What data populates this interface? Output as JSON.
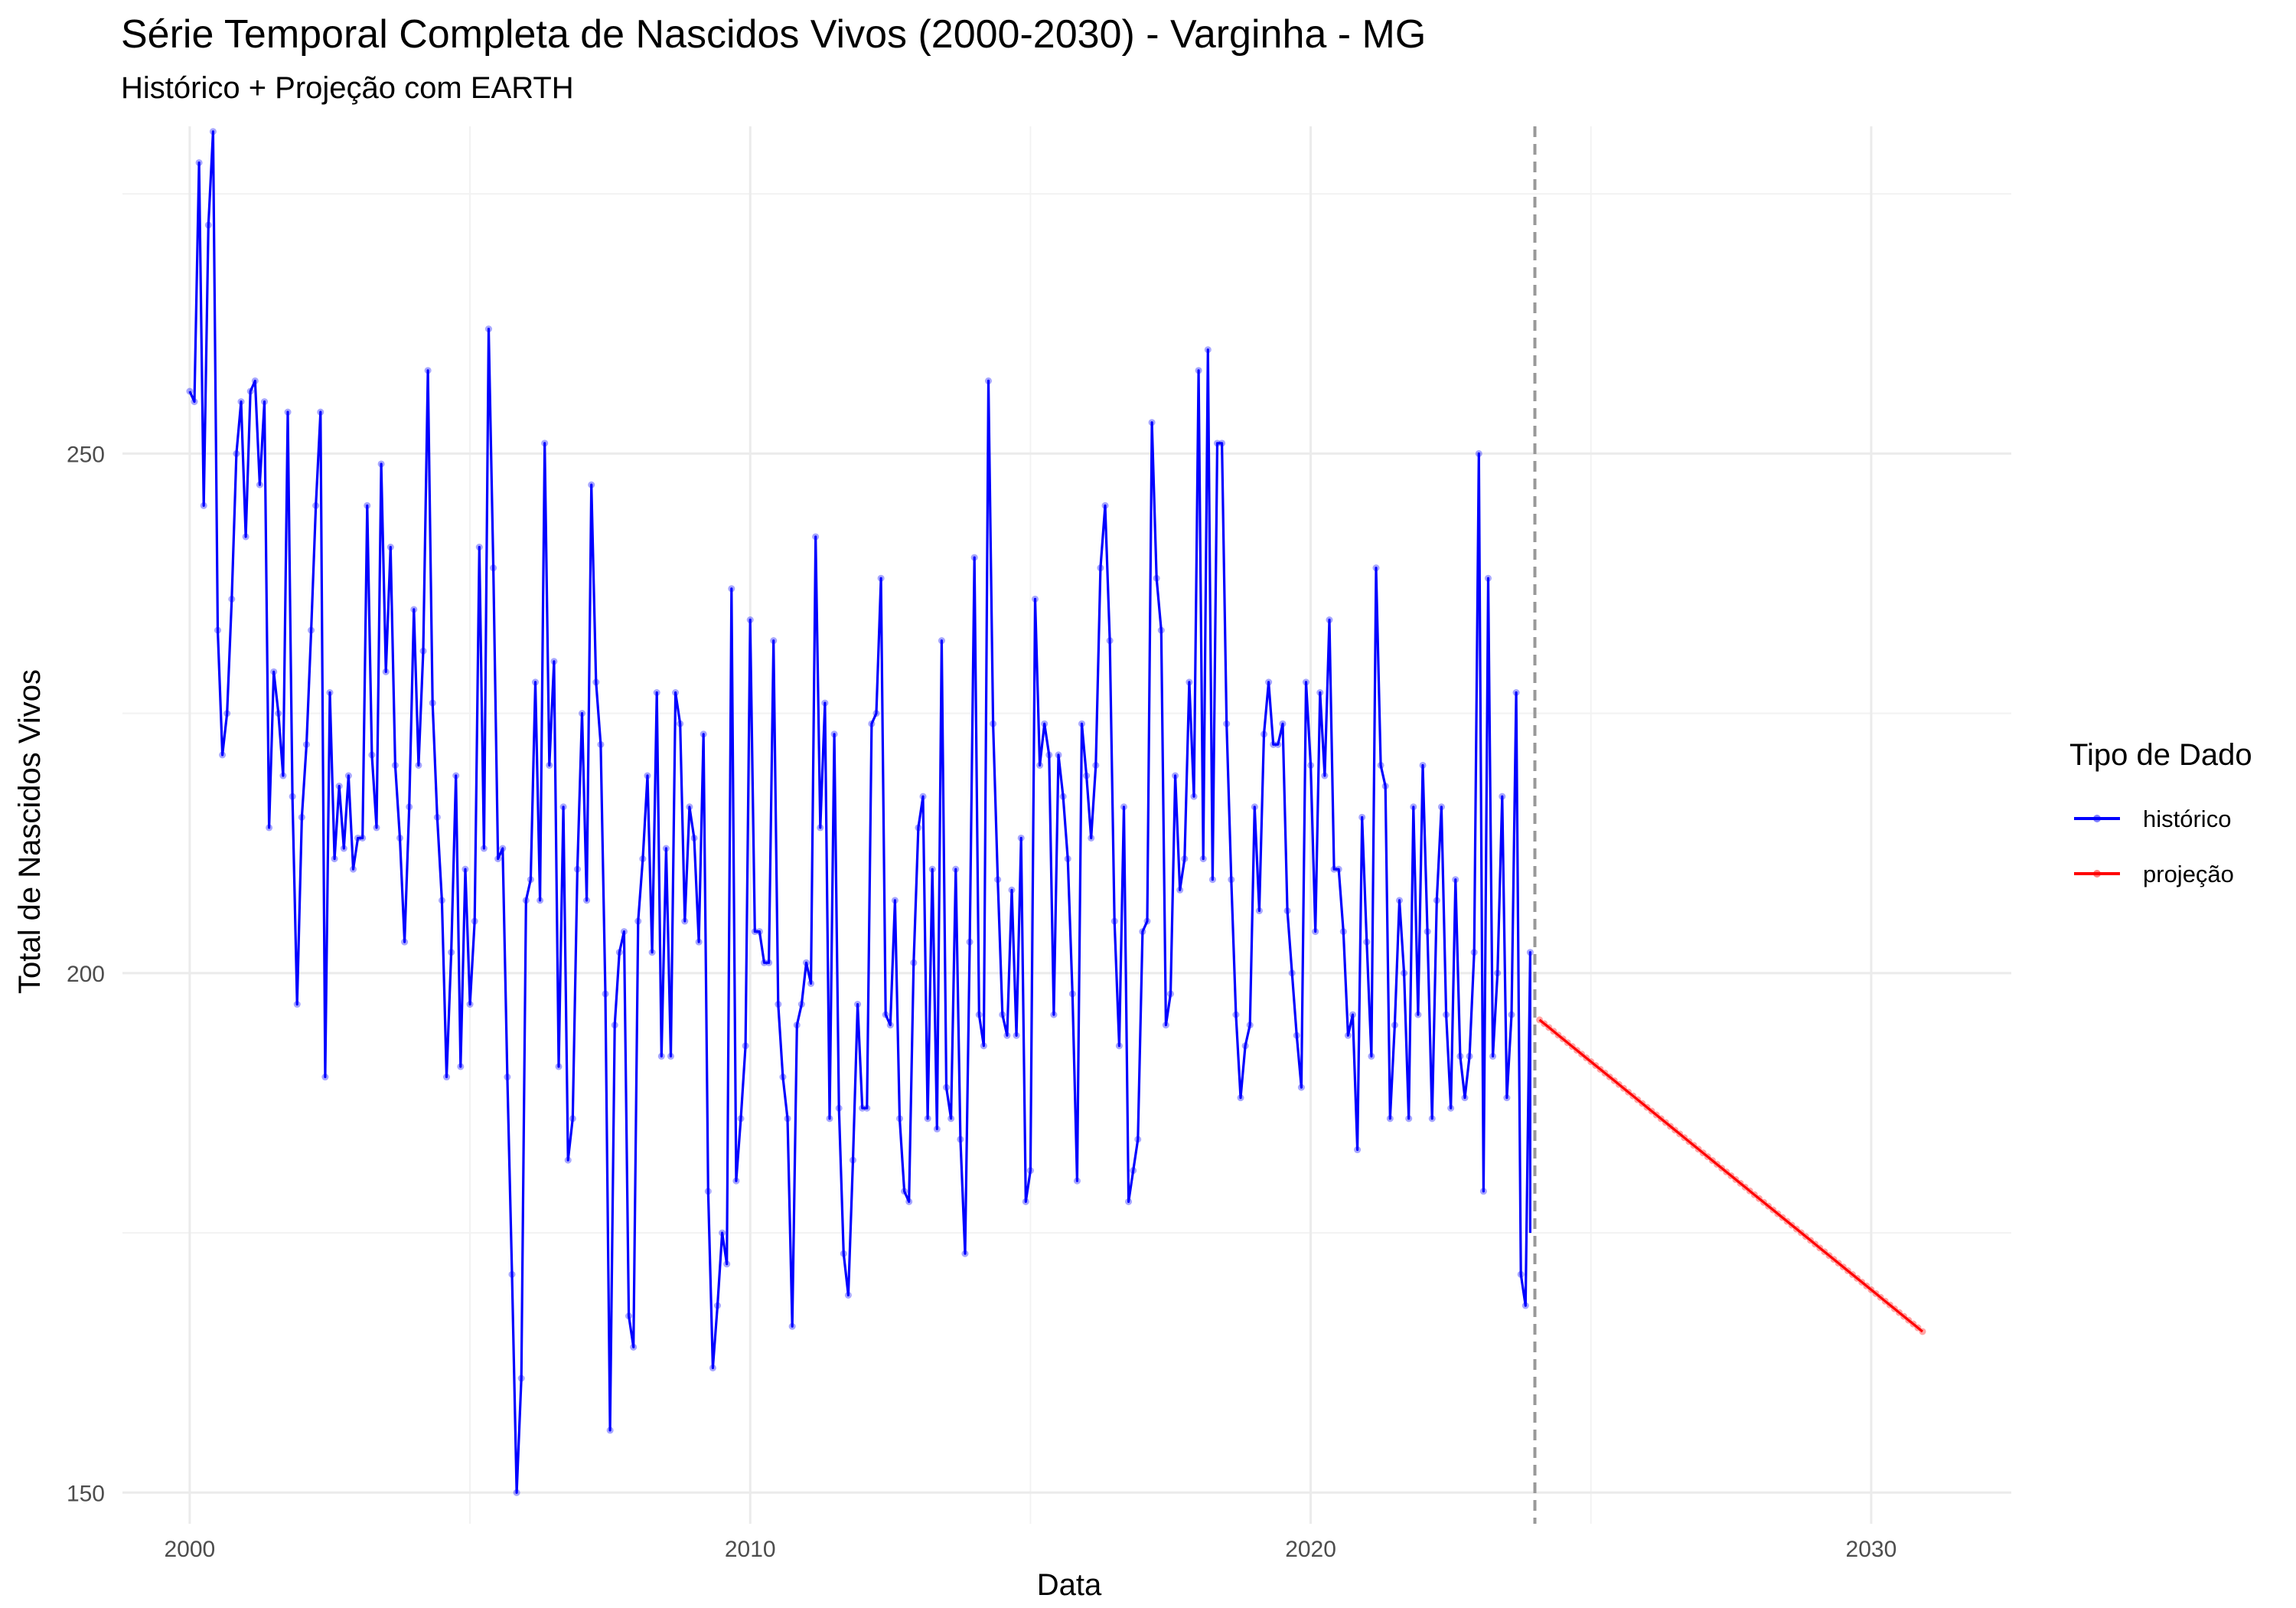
{
  "chart_data": {
    "type": "line",
    "title": "Série Temporal Completa de Nascidos Vivos (2000-2030) -  Varginha - MG",
    "subtitle": "Histórico + Projeção com EARTH",
    "xlabel": "Data",
    "ylabel": "Total de Nascidos Vivos",
    "x_ticks": [
      2000,
      2010,
      2020,
      2030
    ],
    "y_ticks": [
      150,
      200,
      250
    ],
    "xlim": [
      1998.8,
      2032.5
    ],
    "ylim": [
      147,
      281.5
    ],
    "grid": true,
    "legend_title": "Tipo de Dado",
    "legend_position": "right",
    "split_line_x": 2024.0,
    "split_line_color": "#999999",
    "series": [
      {
        "name": "histórico",
        "color": "#0000ff",
        "x_start": 2000.0,
        "x_step": 0.0833333,
        "values": [
          256,
          255,
          278,
          245,
          272,
          281,
          233,
          221,
          225,
          236,
          250,
          255,
          242,
          256,
          257,
          247,
          255,
          214,
          229,
          225,
          219,
          254,
          217,
          197,
          215,
          222,
          233,
          245,
          254,
          190,
          227,
          211,
          218,
          212,
          219,
          210,
          213,
          213,
          245,
          221,
          214,
          249,
          229,
          241,
          220,
          213,
          203,
          216,
          235,
          220,
          231,
          258,
          226,
          215,
          207,
          190,
          202,
          219,
          191,
          210,
          197,
          205,
          241,
          212,
          262,
          239,
          211,
          212,
          190,
          171,
          150,
          161,
          207,
          209,
          228,
          207,
          251,
          220,
          230,
          191,
          216,
          182,
          186,
          210,
          225,
          207,
          247,
          228,
          222,
          198,
          156,
          195,
          202,
          204,
          167,
          164,
          205,
          211,
          219,
          202,
          227,
          192,
          212,
          192,
          227,
          224,
          205,
          216,
          213,
          203,
          223,
          179,
          162,
          168,
          175,
          172,
          237,
          180,
          186,
          193,
          234,
          204,
          204,
          201,
          201,
          232,
          197,
          190,
          186,
          166,
          195,
          197,
          201,
          199,
          242,
          214,
          226,
          186,
          223,
          187,
          173,
          169,
          182,
          197,
          187,
          187,
          224,
          225,
          238,
          196,
          195,
          207,
          186,
          179,
          178,
          201,
          214,
          217,
          186,
          210,
          185,
          232,
          189,
          186,
          210,
          184,
          173,
          203,
          240,
          196,
          193,
          257,
          224,
          209,
          196,
          194,
          208,
          194,
          213,
          178,
          181,
          236,
          220,
          224,
          221,
          196,
          221,
          217,
          211,
          198,
          180,
          224,
          219,
          213,
          220,
          239,
          245,
          232,
          205,
          193,
          216,
          178,
          181,
          184,
          204,
          205,
          253,
          238,
          233,
          195,
          198,
          219,
          208,
          211,
          228,
          217,
          258,
          211,
          260,
          209,
          251,
          251,
          224,
          209,
          196,
          188,
          193,
          195,
          216,
          206,
          223,
          228,
          222,
          222,
          224,
          206,
          200,
          194,
          189,
          228,
          220,
          204,
          227,
          219,
          234,
          210,
          210,
          204,
          194,
          196,
          183,
          215,
          203,
          192,
          239,
          220,
          218,
          186,
          195,
          207,
          200,
          186,
          216,
          196,
          220,
          204,
          186,
          207,
          216,
          196,
          187,
          209,
          192,
          188,
          192,
          202,
          250,
          179,
          238,
          192,
          200,
          217,
          188,
          196,
          227,
          171,
          168,
          202
        ],
        "projection_bridge": [
          196,
          175
        ]
      },
      {
        "name": "projeção",
        "color": "#ff0000",
        "x_start": 2024.0833,
        "x_end": 2030.9167,
        "y_start": 195.5,
        "y_end": 165.5,
        "n_points": 83
      }
    ]
  }
}
